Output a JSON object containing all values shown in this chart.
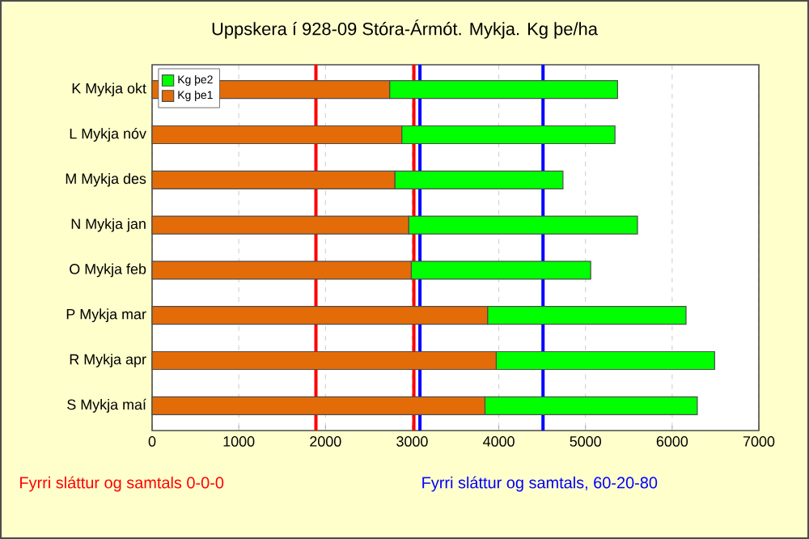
{
  "chart_data": {
    "type": "bar",
    "orientation": "horizontal",
    "stacked": true,
    "title": "Uppskera í 928-09 Stóra-Ármót. Mykja. Kg þe/ha",
    "categories": [
      "K Mykja okt",
      "L Mykja nóv",
      "M Mykja des",
      "N Mykja jan",
      "O Mykja feb",
      "P Mykja mar",
      "R Mykja apr",
      "S Mykja maí"
    ],
    "series": [
      {
        "name": "Kg þe1",
        "color": "#e36c09",
        "values": [
          2740,
          2880,
          2800,
          2960,
          2990,
          3870,
          3970,
          3840
        ]
      },
      {
        "name": "Kg þe2",
        "color": "#00ff00",
        "values": [
          2630,
          2460,
          1940,
          2640,
          2070,
          2290,
          2520,
          2450
        ]
      }
    ],
    "xlim": [
      0,
      7000
    ],
    "xticks": [
      0,
      1000,
      2000,
      3000,
      4000,
      5000,
      6000,
      7000
    ],
    "grid": "x",
    "legend": "top left",
    "ref_lines": [
      {
        "axis": "x",
        "value": 1890,
        "color": "#ff0000",
        "label": "Fyrri sláttur og samtals 0-0-0"
      },
      {
        "axis": "x",
        "value": 3020,
        "color": "#ff0000"
      },
      {
        "axis": "x",
        "value": 3090,
        "color": "#0000ff",
        "label": "Fyrri sláttur og samtals, 60-20-80"
      },
      {
        "axis": "x",
        "value": 4510,
        "color": "#0000ff"
      }
    ]
  }
}
